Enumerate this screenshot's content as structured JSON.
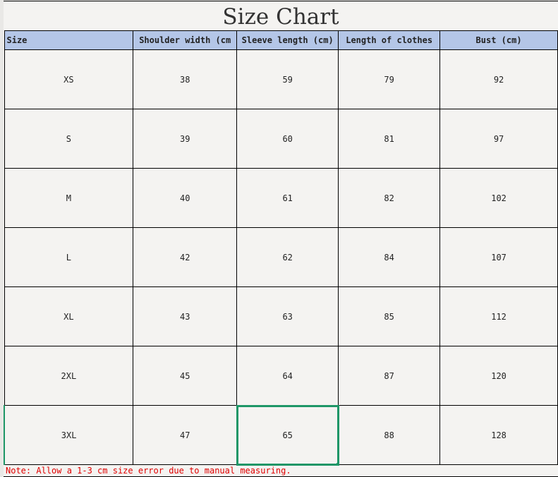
{
  "title": "Size Chart",
  "headers": [
    "Size",
    "Shoulder width (cm",
    "Sleeve length (cm)",
    "Length of clothes",
    "Bust (cm)"
  ],
  "rows": [
    [
      "XS",
      "38",
      "59",
      "79",
      "92"
    ],
    [
      "S",
      "39",
      "60",
      "81",
      "97"
    ],
    [
      "M",
      "40",
      "61",
      "82",
      "102"
    ],
    [
      "L",
      "42",
      "62",
      "84",
      "107"
    ],
    [
      "XL",
      "43",
      "63",
      "85",
      "112"
    ],
    [
      "2XL",
      "45",
      "64",
      "87",
      "120"
    ],
    [
      "3XL",
      "47",
      "65",
      "88",
      "128"
    ]
  ],
  "note": "Note: Allow a 1-3 cm size error due to manual measuring.",
  "colors": {
    "header_bg": "#b4c6e7",
    "selection": "#1e9667",
    "note": "#e00000"
  }
}
